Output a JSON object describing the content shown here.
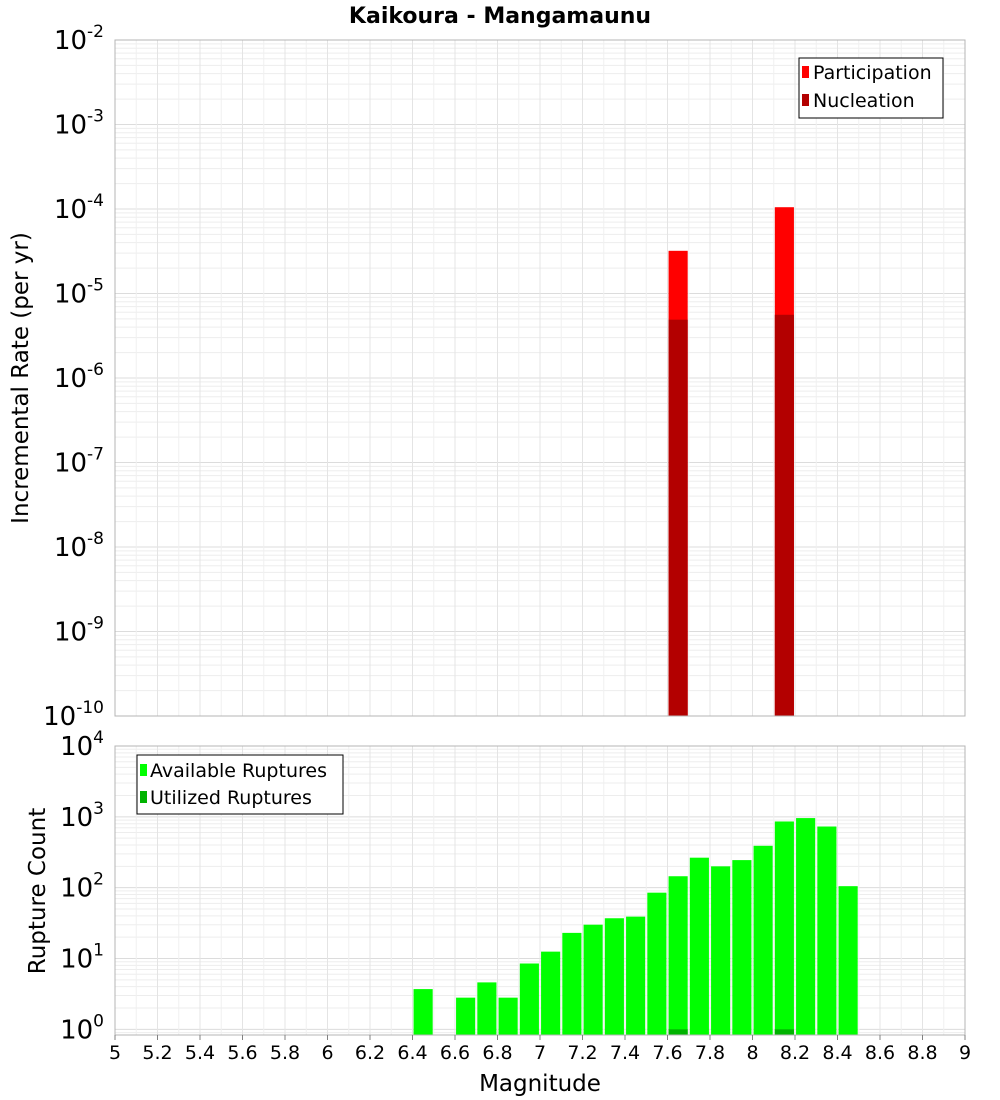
{
  "chart_data": [
    {
      "panel": "top",
      "type": "bar",
      "title": "Kaikoura - Mangamaunu",
      "xlabel": "",
      "ylabel": "Incremental Rate (per yr)",
      "yscale": "log",
      "ylim_exp": [
        -10,
        -2
      ],
      "xlim": [
        5,
        9
      ],
      "ytick_exponents": [
        "-2",
        "-3",
        "-4",
        "-5",
        "-6",
        "-7",
        "-8",
        "-9",
        "-10"
      ],
      "ytick_base": "10",
      "legend_position": "top-right",
      "series": [
        {
          "name": "Participation",
          "color": "#ff0000",
          "points": [
            {
              "x": 7.65,
              "y": 3.2e-05
            },
            {
              "x": 8.15,
              "y": 0.000105
            }
          ]
        },
        {
          "name": "Nucleation",
          "color": "#b30000",
          "points": [
            {
              "x": 7.65,
              "y": 4.9e-06
            },
            {
              "x": 8.15,
              "y": 5.6e-06
            }
          ]
        }
      ]
    },
    {
      "panel": "bottom",
      "type": "bar",
      "xlabel": "Magnitude",
      "ylabel": "Rupture Count",
      "yscale": "log",
      "ylim_exp": [
        -0.08,
        4
      ],
      "xlim": [
        5,
        9
      ],
      "ytick_exponents": [
        "0",
        "1",
        "2",
        "3",
        "4"
      ],
      "ytick_base": "10",
      "xticks": [
        "5",
        "5.2",
        "5.4",
        "5.6",
        "5.8",
        "6",
        "6.2",
        "6.4",
        "6.6",
        "6.8",
        "7",
        "7.2",
        "7.4",
        "7.6",
        "7.8",
        "8",
        "8.2",
        "8.4",
        "8.6",
        "8.8",
        "9"
      ],
      "legend_position": "top-left",
      "series": [
        {
          "name": "Available Ruptures",
          "color": "#00ff00",
          "points": [
            {
              "x": 6.45,
              "y": 3.7
            },
            {
              "x": 6.65,
              "y": 2.8
            },
            {
              "x": 6.75,
              "y": 4.6
            },
            {
              "x": 6.85,
              "y": 2.8
            },
            {
              "x": 6.95,
              "y": 8.5
            },
            {
              "x": 7.05,
              "y": 12.5
            },
            {
              "x": 7.15,
              "y": 23
            },
            {
              "x": 7.25,
              "y": 30
            },
            {
              "x": 7.35,
              "y": 37
            },
            {
              "x": 7.45,
              "y": 39
            },
            {
              "x": 7.55,
              "y": 85
            },
            {
              "x": 7.65,
              "y": 145
            },
            {
              "x": 7.75,
              "y": 265
            },
            {
              "x": 7.85,
              "y": 200
            },
            {
              "x": 7.95,
              "y": 245
            },
            {
              "x": 8.05,
              "y": 390
            },
            {
              "x": 8.15,
              "y": 860
            },
            {
              "x": 8.25,
              "y": 960
            },
            {
              "x": 8.35,
              "y": 730
            },
            {
              "x": 8.45,
              "y": 105
            }
          ]
        },
        {
          "name": "Utilized Ruptures",
          "color": "#00b300",
          "points": [
            {
              "x": 7.65,
              "y": 1
            },
            {
              "x": 8.15,
              "y": 1
            }
          ]
        }
      ]
    }
  ]
}
